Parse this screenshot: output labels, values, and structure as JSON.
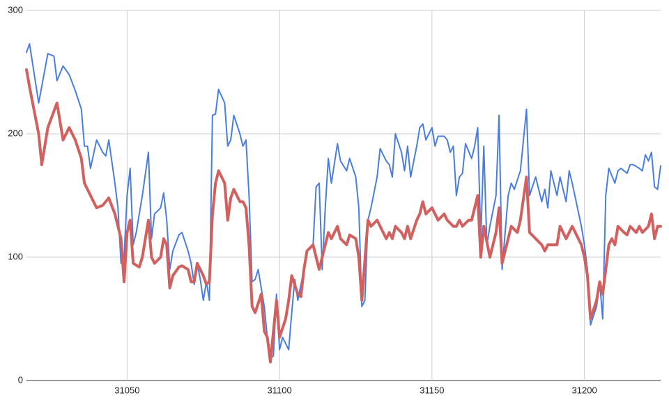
{
  "chart_data": {
    "type": "line",
    "xlim": [
      31017,
      31225
    ],
    "xticks": [
      31050,
      31100,
      31150,
      31200
    ],
    "ylim": [
      0,
      300
    ],
    "yticks": [
      0,
      100,
      200,
      300
    ],
    "grid": true,
    "series": [
      {
        "color": "#4a7de3",
        "x": [
          31017,
          31018,
          31021,
          31024,
          31026,
          31027,
          31029,
          31031,
          31033,
          31035,
          31036,
          31037,
          31038,
          31040,
          31042,
          31043,
          31044,
          31046,
          31047,
          31048,
          31049,
          31050,
          31051,
          31052,
          31053,
          31055,
          31057,
          31058,
          31059,
          31061,
          31062,
          31063,
          31064,
          31065,
          31067,
          31068,
          31070,
          31071,
          31072,
          31073,
          31074,
          31075,
          31076,
          31077,
          31078,
          31079,
          31080,
          31082,
          31083,
          31084,
          31085,
          31087,
          31088,
          31089,
          31090,
          31091,
          31092,
          31093,
          31095,
          31096,
          31097,
          31098,
          31099,
          31100,
          31101,
          31102,
          31103,
          31104,
          31105,
          31106,
          31108,
          31109,
          31111,
          31112,
          31113,
          31114,
          31115,
          31116,
          31117,
          31119,
          31120,
          31122,
          31123,
          31125,
          31126,
          31127,
          31128,
          31129,
          31130,
          31132,
          31133,
          31135,
          31136,
          31137,
          31138,
          31140,
          31141,
          31142,
          31143,
          31145,
          31146,
          31147,
          31148,
          31150,
          31151,
          31152,
          31154,
          31155,
          31156,
          31157,
          31158,
          31159,
          31160,
          31161,
          31163,
          31164,
          31165,
          31166,
          31167,
          31168,
          31169,
          31171,
          31172,
          31173,
          31175,
          31176,
          31177,
          31179,
          31181,
          31182,
          31184,
          31186,
          31187,
          31188,
          31189,
          31191,
          31192,
          31194,
          31195,
          31196,
          31199,
          31200,
          31201,
          31202,
          31204,
          31205,
          31206,
          31207,
          31208,
          31210,
          31211,
          31212,
          31214,
          31215,
          31216,
          31218,
          31219,
          31220,
          31221,
          31222,
          31223,
          31224,
          31225
        ],
        "values": [
          266,
          273,
          225,
          265,
          263,
          243,
          255,
          248,
          235,
          220,
          190,
          190,
          172,
          195,
          185,
          182,
          195,
          160,
          140,
          95,
          100,
          150,
          172,
          110,
          120,
          150,
          185,
          115,
          135,
          140,
          152,
          130,
          90,
          105,
          118,
          120,
          105,
          95,
          78,
          95,
          82,
          65,
          80,
          65,
          215,
          216,
          236,
          225,
          190,
          195,
          215,
          200,
          190,
          195,
          150,
          80,
          82,
          90,
          60,
          35,
          18,
          20,
          70,
          25,
          35,
          30,
          25,
          55,
          82,
          65,
          90,
          105,
          110,
          157,
          160,
          90,
          140,
          180,
          160,
          192,
          178,
          170,
          180,
          165,
          140,
          60,
          65,
          130,
          140,
          165,
          188,
          178,
          175,
          165,
          200,
          185,
          170,
          190,
          165,
          190,
          205,
          208,
          195,
          205,
          190,
          198,
          198,
          195,
          185,
          190,
          150,
          165,
          168,
          192,
          180,
          190,
          205,
          115,
          190,
          110,
          125,
          150,
          215,
          90,
          150,
          160,
          155,
          170,
          220,
          150,
          165,
          145,
          155,
          140,
          170,
          150,
          165,
          145,
          170,
          160,
          125,
          110,
          90,
          45,
          60,
          80,
          50,
          150,
          172,
          160,
          170,
          172,
          168,
          175,
          175,
          172,
          170,
          183,
          178,
          185,
          157,
          155,
          174
        ]
      },
      {
        "color": "#d2605e",
        "x": [
          31017,
          31018,
          31021,
          31022,
          31024,
          31027,
          31029,
          31031,
          31033,
          31035,
          31036,
          31038,
          31040,
          31042,
          31044,
          31046,
          31048,
          31049,
          31050,
          31051,
          31052,
          31054,
          31055,
          31057,
          31058,
          31059,
          31061,
          31062,
          31063,
          31064,
          31065,
          31067,
          31068,
          31070,
          31071,
          31072,
          31073,
          31075,
          31076,
          31077,
          31078,
          31079,
          31080,
          31082,
          31083,
          31084,
          31085,
          31087,
          31088,
          31089,
          31090,
          31091,
          31092,
          31094,
          31095,
          31096,
          31097,
          31098,
          31099,
          31100,
          31102,
          31103,
          31104,
          31106,
          31107,
          31108,
          31109,
          31111,
          31112,
          31113,
          31115,
          31116,
          31117,
          31119,
          31120,
          31122,
          31123,
          31125,
          31126,
          31127,
          31129,
          31130,
          31132,
          31133,
          31135,
          31136,
          31137,
          31138,
          31140,
          31141,
          31142,
          31143,
          31145,
          31146,
          31147,
          31148,
          31150,
          31151,
          31152,
          31154,
          31155,
          31157,
          31158,
          31159,
          31160,
          31162,
          31163,
          31164,
          31165,
          31166,
          31167,
          31169,
          31170,
          31171,
          31172,
          31173,
          31175,
          31176,
          31178,
          31179,
          31181,
          31182,
          31184,
          31186,
          31187,
          31188,
          31190,
          31191,
          31192,
          31194,
          31195,
          31196,
          31199,
          31200,
          31201,
          31202,
          31204,
          31205,
          31206,
          31208,
          31209,
          31210,
          31211,
          31213,
          31214,
          31215,
          31217,
          31218,
          31219,
          31221,
          31222,
          31223,
          31224,
          31225
        ],
        "values": [
          252,
          238,
          200,
          175,
          205,
          225,
          195,
          205,
          195,
          180,
          160,
          150,
          140,
          142,
          148,
          135,
          115,
          80,
          120,
          130,
          95,
          92,
          100,
          130,
          100,
          95,
          100,
          115,
          110,
          75,
          85,
          92,
          93,
          90,
          80,
          80,
          95,
          85,
          78,
          80,
          135,
          160,
          170,
          160,
          130,
          148,
          155,
          145,
          145,
          140,
          110,
          60,
          55,
          70,
          40,
          35,
          15,
          40,
          65,
          35,
          50,
          65,
          85,
          70,
          68,
          90,
          105,
          110,
          100,
          90,
          110,
          120,
          115,
          125,
          115,
          110,
          118,
          115,
          100,
          65,
          130,
          125,
          130,
          125,
          115,
          120,
          115,
          125,
          120,
          115,
          125,
          115,
          130,
          135,
          145,
          135,
          140,
          135,
          130,
          135,
          130,
          125,
          125,
          130,
          125,
          130,
          130,
          140,
          150,
          100,
          125,
          100,
          110,
          120,
          140,
          95,
          115,
          125,
          120,
          130,
          165,
          120,
          115,
          110,
          105,
          110,
          110,
          110,
          125,
          115,
          120,
          125,
          110,
          100,
          85,
          50,
          65,
          80,
          70,
          110,
          115,
          110,
          125,
          120,
          118,
          125,
          120,
          125,
          120,
          125,
          135,
          115,
          125,
          125
        ]
      }
    ]
  }
}
